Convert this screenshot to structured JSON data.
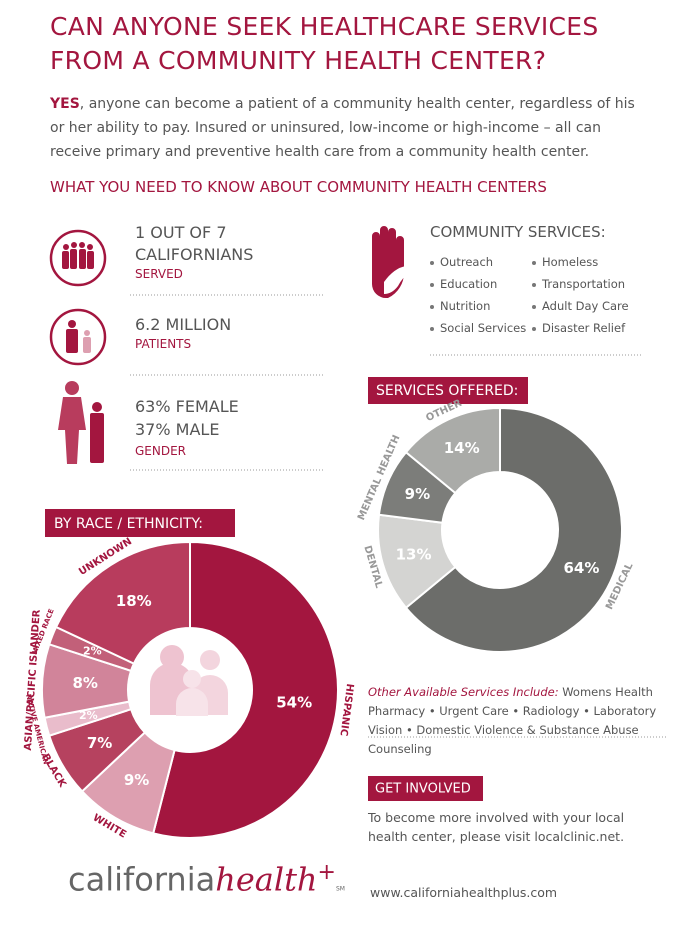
{
  "header": {
    "title_lines": [
      "CAN ANYONE SEEK HEALTHCARE SERVICES",
      "FROM A COMMUNITY HEALTH CENTER?"
    ],
    "intro_emphasis": "YES",
    "intro_text": ", anyone can become a patient of a community health center, regardless of his or her ability to pay. Insured or uninsured, low-income or high-income – all can receive primary and preventive health care from a community health center."
  },
  "section_heading": "WHAT YOU NEED TO KNOW ABOUT COMMUNITY HEALTH CENTERS",
  "stats": [
    {
      "lines": [
        "1 OUT OF 7",
        "CALIFORNIANS"
      ],
      "label": "SERVED"
    },
    {
      "lines": [
        "6.2 MILLION"
      ],
      "label": "PATIENTS"
    },
    {
      "lines": [
        "63% FEMALE",
        "37% MALE"
      ],
      "label": "GENDER"
    }
  ],
  "community_services": {
    "heading": "COMMUNITY SERVICES:",
    "items": [
      "Outreach",
      "Homeless",
      "Education",
      "Transportation",
      "Nutrition",
      "Adult Day Care",
      "Social Services",
      "Disaster Relief"
    ]
  },
  "chart_data": [
    {
      "type": "donut",
      "title": "BY RACE / ETHNICITY:",
      "categories": [
        "HISPANIC",
        "WHITE",
        "BLACK",
        "NATIVE AMERICAN",
        "ASIAN/PACIFIC ISLANDER",
        "MIXED RACE",
        "UNKNOWN"
      ],
      "values": [
        54,
        9,
        7,
        2,
        8,
        2,
        18
      ],
      "value_labels": [
        "54%",
        "9%",
        "7%",
        "2%",
        "8%",
        "2%",
        "18%"
      ],
      "colors": [
        "#a3163f",
        "#dd9fb0",
        "#b6425f",
        "#e9bccb",
        "#d1849a",
        "#c26079",
        "#b83c5d"
      ]
    },
    {
      "type": "donut",
      "title": "SERVICES OFFERED:",
      "categories": [
        "MEDICAL",
        "DENTAL",
        "MENTAL HEALTH",
        "OTHER"
      ],
      "values": [
        64,
        13,
        9,
        14
      ],
      "value_labels": [
        "64%",
        "13%",
        "9%",
        "14%"
      ],
      "colors": [
        "#6c6d6a",
        "#d4d4d2",
        "#7c7d7a",
        "#aaaba8"
      ]
    }
  ],
  "other_services": {
    "lead": "Other Available Services Include:",
    "text": "Womens Health Pharmacy • Urgent Care • Radiology • Laboratory Vision • Domestic Violence & Substance Abuse Counseling"
  },
  "get_involved": {
    "heading": "GET INVOLVED",
    "text": "To become more involved with your local health center, please visit localclinic.net."
  },
  "footer": {
    "logo_word": "california",
    "logo_accent": "health",
    "logo_plus": "+",
    "logo_mark": "SM",
    "url": "www.californiahealthplus.com"
  }
}
